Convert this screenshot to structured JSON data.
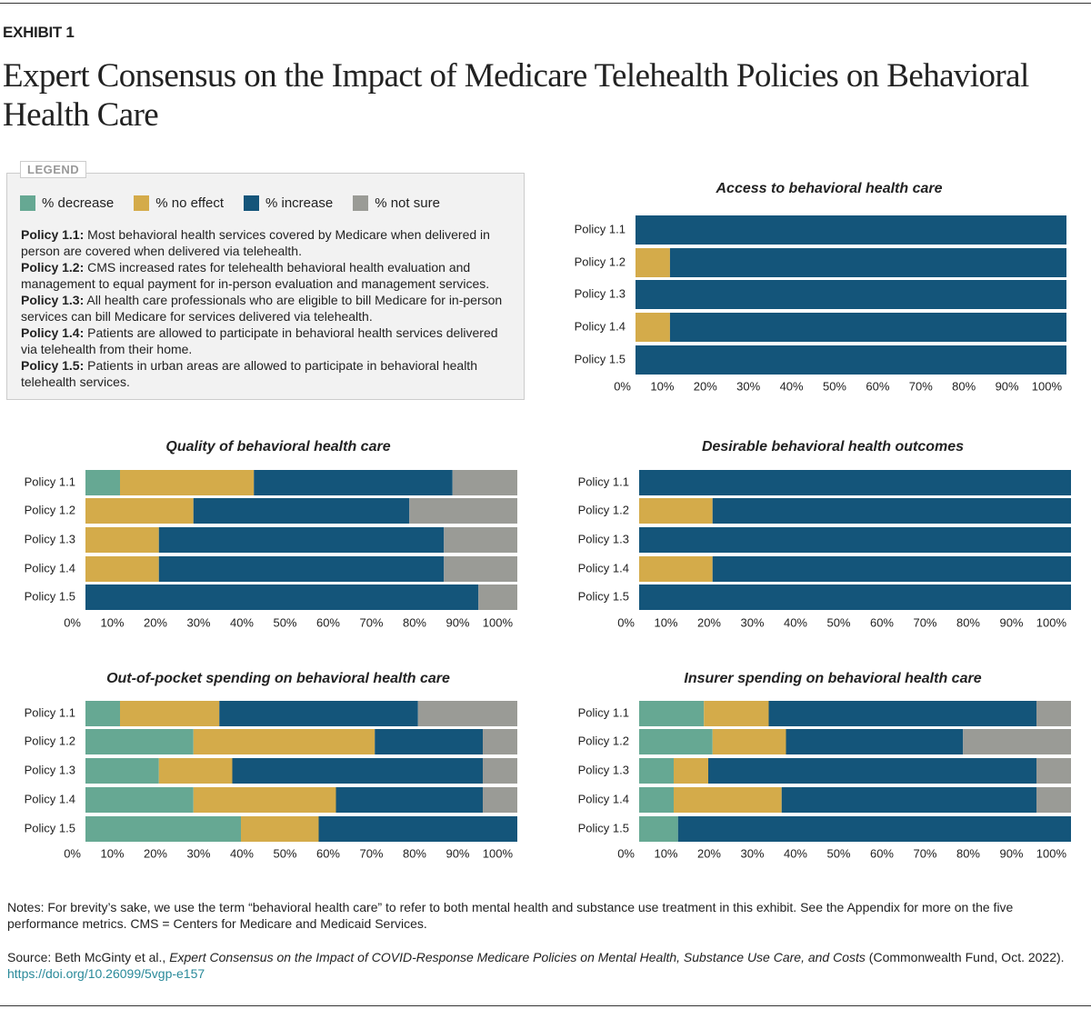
{
  "header": {
    "exhibit": "EXHIBIT 1",
    "title": "Expert Consensus on the Impact of Medicare Telehealth Policies on Behavioral Health Care"
  },
  "legend": {
    "title": "LEGEND",
    "policies": [
      {
        "label": "Policy 1.1:",
        "text": "Most behavioral health services covered by Medicare when delivered in person are covered when delivered via telehealth."
      },
      {
        "label": "Policy 1.2:",
        "text": "CMS increased rates for telehealth behavioral health evaluation and management to equal payment for in-person evaluation and management services."
      },
      {
        "label": "Policy 1.3:",
        "text": "All health care professionals who are eligible to bill Medicare for in-person services can bill Medicare for services delivered via telehealth."
      },
      {
        "label": "Policy 1.4:",
        "text": "Patients are allowed to participate in behavioral health services delivered via telehealth from their home."
      },
      {
        "label": "Policy 1.5:",
        "text": "Patients in urban areas are allowed to participate in behavioral health telehealth services."
      }
    ]
  },
  "chart_data": [
    {
      "type": "bar",
      "orientation": "horizontal",
      "stacked": true,
      "title": "Access to behavioral health care",
      "categories": [
        "Policy 1.1",
        "Policy 1.2",
        "Policy 1.3",
        "Policy 1.4",
        "Policy 1.5"
      ],
      "series": [
        {
          "name": "% decrease",
          "color": "#66a893",
          "values": [
            0,
            0,
            0,
            0,
            0
          ]
        },
        {
          "name": "% no effect",
          "color": "#d4ab4a",
          "values": [
            0,
            8,
            0,
            8,
            0
          ]
        },
        {
          "name": "% increase",
          "color": "#14557a",
          "values": [
            100,
            92,
            100,
            92,
            100
          ]
        },
        {
          "name": "% not sure",
          "color": "#9a9b96",
          "values": [
            0,
            0,
            0,
            0,
            0
          ]
        }
      ],
      "xlim": [
        0,
        100
      ],
      "xticks": [
        {
          "value": 0,
          "label": "0%"
        },
        {
          "value": 10,
          "label": "10%"
        },
        {
          "value": 20,
          "label": "20%"
        },
        {
          "value": 30,
          "label": "30%"
        },
        {
          "value": 40,
          "label": "40%"
        },
        {
          "value": 50,
          "label": "50%"
        },
        {
          "value": 60,
          "label": "60%"
        },
        {
          "value": 70,
          "label": "70%"
        },
        {
          "value": 80,
          "label": "80%"
        },
        {
          "value": 90,
          "label": "90%"
        },
        {
          "value": 100,
          "label": "100%"
        }
      ]
    },
    {
      "type": "bar",
      "orientation": "horizontal",
      "stacked": true,
      "title": "Quality of behavioral health care",
      "categories": [
        "Policy 1.1",
        "Policy 1.2",
        "Policy 1.3",
        "Policy 1.4",
        "Policy 1.5"
      ],
      "series": [
        {
          "name": "% decrease",
          "color": "#66a893",
          "values": [
            8,
            0,
            0,
            0,
            0
          ]
        },
        {
          "name": "% no effect",
          "color": "#d4ab4a",
          "values": [
            31,
            25,
            17,
            17,
            0
          ]
        },
        {
          "name": "% increase",
          "color": "#14557a",
          "values": [
            46,
            50,
            66,
            66,
            91
          ]
        },
        {
          "name": "% not sure",
          "color": "#9a9b96",
          "values": [
            15,
            25,
            17,
            17,
            9
          ]
        }
      ],
      "xlim": [
        0,
        100
      ],
      "xticks": [
        {
          "value": 0,
          "label": "0%"
        },
        {
          "value": 10,
          "label": "10%"
        },
        {
          "value": 20,
          "label": "20%"
        },
        {
          "value": 30,
          "label": "30%"
        },
        {
          "value": 40,
          "label": "40%"
        },
        {
          "value": 50,
          "label": "50%"
        },
        {
          "value": 60,
          "label": "60%"
        },
        {
          "value": 70,
          "label": "70%"
        },
        {
          "value": 80,
          "label": "80%"
        },
        {
          "value": 90,
          "label": "90%"
        },
        {
          "value": 100,
          "label": "100%"
        }
      ]
    },
    {
      "type": "bar",
      "orientation": "horizontal",
      "stacked": true,
      "title": "Desirable behavioral health outcomes",
      "categories": [
        "Policy 1.1",
        "Policy 1.2",
        "Policy 1.3",
        "Policy 1.4",
        "Policy 1.5"
      ],
      "series": [
        {
          "name": "% decrease",
          "color": "#66a893",
          "values": [
            0,
            0,
            0,
            0,
            0
          ]
        },
        {
          "name": "% no effect",
          "color": "#d4ab4a",
          "values": [
            0,
            17,
            0,
            17,
            0
          ]
        },
        {
          "name": "% increase",
          "color": "#14557a",
          "values": [
            100,
            83,
            100,
            83,
            100
          ]
        },
        {
          "name": "% not sure",
          "color": "#9a9b96",
          "values": [
            0,
            0,
            0,
            0,
            0
          ]
        }
      ],
      "xlim": [
        0,
        100
      ],
      "xticks": [
        {
          "value": 0,
          "label": "0%"
        },
        {
          "value": 10,
          "label": "10%"
        },
        {
          "value": 20,
          "label": "20%"
        },
        {
          "value": 30,
          "label": "30%"
        },
        {
          "value": 40,
          "label": "40%"
        },
        {
          "value": 50,
          "label": "50%"
        },
        {
          "value": 60,
          "label": "60%"
        },
        {
          "value": 70,
          "label": "70%"
        },
        {
          "value": 80,
          "label": "80%"
        },
        {
          "value": 90,
          "label": "90%"
        },
        {
          "value": 100,
          "label": "100%"
        }
      ]
    },
    {
      "type": "bar",
      "orientation": "horizontal",
      "stacked": true,
      "title": "Out-of-pocket spending on behavioral health care",
      "categories": [
        "Policy 1.1",
        "Policy 1.2",
        "Policy 1.3",
        "Policy 1.4",
        "Policy 1.5"
      ],
      "series": [
        {
          "name": "% decrease",
          "color": "#66a893",
          "values": [
            8,
            25,
            17,
            25,
            36
          ]
        },
        {
          "name": "% no effect",
          "color": "#d4ab4a",
          "values": [
            23,
            42,
            17,
            33,
            18
          ]
        },
        {
          "name": "% increase",
          "color": "#14557a",
          "values": [
            46,
            25,
            58,
            34,
            46
          ]
        },
        {
          "name": "% not sure",
          "color": "#9a9b96",
          "values": [
            23,
            8,
            8,
            8,
            0
          ]
        }
      ],
      "xlim": [
        0,
        100
      ],
      "xticks": [
        {
          "value": 0,
          "label": "0%"
        },
        {
          "value": 10,
          "label": "10%"
        },
        {
          "value": 20,
          "label": "20%"
        },
        {
          "value": 30,
          "label": "30%"
        },
        {
          "value": 40,
          "label": "40%"
        },
        {
          "value": 50,
          "label": "50%"
        },
        {
          "value": 60,
          "label": "60%"
        },
        {
          "value": 70,
          "label": "70%"
        },
        {
          "value": 80,
          "label": "80%"
        },
        {
          "value": 90,
          "label": "90%"
        },
        {
          "value": 100,
          "label": "100%"
        }
      ]
    },
    {
      "type": "bar",
      "orientation": "horizontal",
      "stacked": true,
      "title": "Insurer spending on behavioral health care",
      "categories": [
        "Policy 1.1",
        "Policy 1.2",
        "Policy 1.3",
        "Policy 1.4",
        "Policy 1.5"
      ],
      "series": [
        {
          "name": "% decrease",
          "color": "#66a893",
          "values": [
            15,
            17,
            8,
            8,
            9
          ]
        },
        {
          "name": "% no effect",
          "color": "#d4ab4a",
          "values": [
            15,
            17,
            8,
            25,
            0
          ]
        },
        {
          "name": "% increase",
          "color": "#14557a",
          "values": [
            62,
            41,
            76,
            59,
            91
          ]
        },
        {
          "name": "% not sure",
          "color": "#9a9b96",
          "values": [
            8,
            25,
            8,
            8,
            0
          ]
        }
      ],
      "xlim": [
        0,
        100
      ],
      "xticks": [
        {
          "value": 0,
          "label": "0%"
        },
        {
          "value": 10,
          "label": "10%"
        },
        {
          "value": 20,
          "label": "20%"
        },
        {
          "value": 30,
          "label": "30%"
        },
        {
          "value": 40,
          "label": "40%"
        },
        {
          "value": 50,
          "label": "50%"
        },
        {
          "value": 60,
          "label": "60%"
        },
        {
          "value": 70,
          "label": "70%"
        },
        {
          "value": 80,
          "label": "80%"
        },
        {
          "value": 90,
          "label": "90%"
        },
        {
          "value": 100,
          "label": "100%"
        }
      ]
    }
  ],
  "notes": "Notes: For brevity’s sake, we use the term “behavioral health care” to refer to both mental health and substance use treatment in this exhibit. See the Appendix for more on the five performance metrics. CMS = Centers for Medicare and Medicaid Services.",
  "source": {
    "prefix": "Source: Beth McGinty et al., ",
    "title": "Expert Consensus on the Impact of COVID-Response Medicare Policies on Mental Health, Substance Use Care, and Costs",
    "suffix": " (Commonwealth Fund, Oct. 2022).",
    "link": "https://doi.org/10.26099/5vgp-e157"
  }
}
